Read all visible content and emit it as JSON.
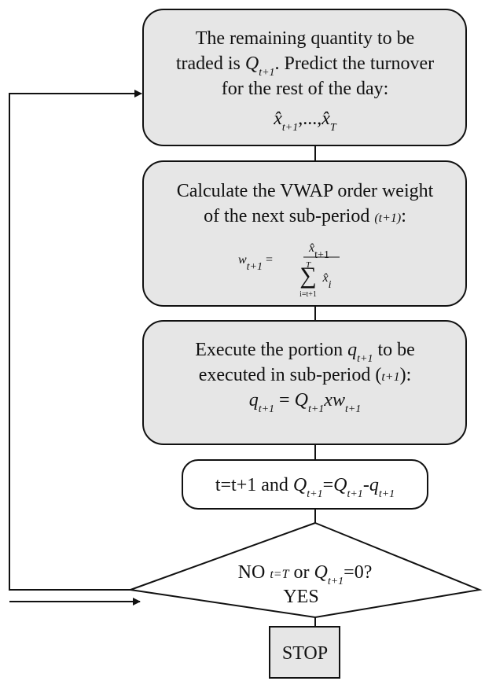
{
  "nodes": [
    {
      "parts": [
        "The remaining quantity to be",
        "traded is ",
        "Q",
        "t+1",
        ". Predict the turnover",
        "for the rest of the day:",
        "x̂",
        "t+1",
        ",...,",
        "x̂",
        "T"
      ]
    },
    {
      "parts": [
        "Calculate the VWAP order weight",
        "of the next sub-period ",
        "(t+1)",
        ":",
        "w",
        "t+1",
        " = ",
        "x̂",
        "t+1",
        "T",
        "∑",
        "x̂",
        "i",
        "i=t+1"
      ]
    },
    {
      "parts": [
        "Execute the portion ",
        "q",
        "t+1",
        " to be",
        "executed in sub-period (",
        "t+1",
        "):",
        "q",
        "t+1",
        " = ",
        "Q",
        "t+1",
        "x",
        "w",
        "t+1"
      ]
    },
    {
      "parts": [
        "t=t+1 and ",
        "Q",
        "t+1",
        "=",
        "Q",
        "t+1",
        "-",
        "q",
        "t+1"
      ]
    }
  ],
  "decision": {
    "parts": [
      "NO ",
      "t=T",
      " or ",
      "Q",
      "t+1",
      "=0?",
      "YES"
    ]
  },
  "stop": {
    "label": "STOP"
  }
}
